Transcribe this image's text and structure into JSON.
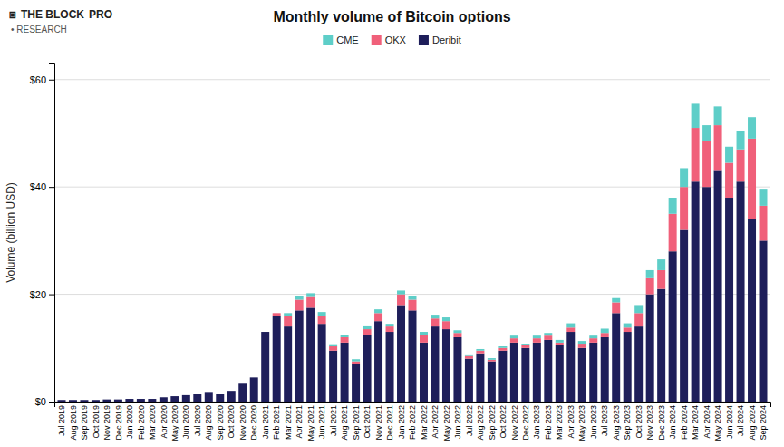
{
  "chart_data": {
    "type": "bar",
    "title": "Monthly volume of Bitcoin options",
    "y_label": "Volume (billion USD)",
    "annotations": [
      "⧈",
      "THE BLOCK",
      "PRO",
      "• RESEARCH"
    ],
    "stacked": true,
    "grid": true,
    "legend": "top",
    "ylim": [
      0,
      63
    ],
    "yticks": [
      {
        "value": 0,
        "label": "$0"
      },
      {
        "value": 20,
        "label": "$20"
      },
      {
        "value": 40,
        "label": "$40"
      },
      {
        "value": 60,
        "label": "$60"
      }
    ],
    "categories": [
      "Jul\n2019",
      "Aug\n2019",
      "Sep\n2019",
      "Oct\n2019",
      "Nov\n2019",
      "Dec\n2019",
      "Jan\n2020",
      "Feb\n2020",
      "Mar\n2020",
      "Apr\n2020",
      "May\n2020",
      "Jun\n2020",
      "Jul\n2020",
      "Aug\n2020",
      "Sep\n2020",
      "Oct\n2020",
      "Nov\n2020",
      "Dec\n2020",
      "Jan\n2021",
      "Feb\n2021",
      "Mar\n2021",
      "Apr\n2021",
      "May\n2021",
      "Jun\n2021",
      "Jul\n2021",
      "Aug\n2021",
      "Sep\n2021",
      "Oct\n2021",
      "Nov\n2021",
      "Dec\n2021",
      "Jan\n2022",
      "Feb\n2022",
      "Mar\n2022",
      "Apr\n2022",
      "May\n2022",
      "Jun\n2022",
      "Jul\n2022",
      "Aug\n2022",
      "Sep\n2022",
      "Oct\n2022",
      "Nov\n2022",
      "Dec\n2022",
      "Jan\n2023",
      "Feb\n2023",
      "Mar\n2023",
      "Apr\n2023",
      "May\n2023",
      "Jun\n2023",
      "Jul\n2023",
      "Aug\n2023",
      "Sep\n2023",
      "Oct\n2023",
      "Nov\n2023",
      "Dec\n2023",
      "Jan\n2024",
      "Feb\n2024",
      "Mar\n2024",
      "Apr\n2024",
      "May\n2024",
      "Jun\n2024",
      "Jul\n2024",
      "Aug\n2024",
      "Sep\n2024"
    ],
    "series": [
      {
        "name": "Deribit",
        "color": "#1e1e5a",
        "values": [
          0.3,
          0.3,
          0.3,
          0.3,
          0.4,
          0.4,
          0.5,
          0.5,
          0.5,
          0.8,
          1.0,
          1.2,
          1.5,
          1.8,
          1.5,
          2.0,
          3.5,
          4.5,
          13.0,
          16.0,
          14.0,
          17.0,
          17.5,
          14.5,
          9.5,
          11.0,
          7.0,
          12.5,
          15.0,
          13.0,
          18.0,
          17.0,
          11.0,
          14.0,
          13.5,
          12.0,
          8.0,
          9.0,
          7.5,
          9.5,
          11.0,
          10.0,
          11.0,
          11.5,
          10.5,
          13.0,
          10.0,
          11.0,
          12.0,
          16.5,
          13.0,
          14.0,
          20.0,
          21.0,
          28.0,
          32.0,
          41.0,
          40.0,
          43.0,
          38.0,
          41.0,
          34.0,
          30.0
        ]
      },
      {
        "name": "OKX",
        "color": "#f0607a",
        "values": [
          0.0,
          0.0,
          0.0,
          0.0,
          0.0,
          0.0,
          0.0,
          0.0,
          0.0,
          0.0,
          0.0,
          0.0,
          0.0,
          0.0,
          0.0,
          0.0,
          0.0,
          0.0,
          0.0,
          0.5,
          2.0,
          2.0,
          2.0,
          1.5,
          0.8,
          1.0,
          0.5,
          1.0,
          1.5,
          1.0,
          2.0,
          2.0,
          1.5,
          1.5,
          1.5,
          0.8,
          0.5,
          0.5,
          0.3,
          0.5,
          0.8,
          0.5,
          0.8,
          0.8,
          0.5,
          0.8,
          0.8,
          0.8,
          0.8,
          2.0,
          0.8,
          2.5,
          3.0,
          3.5,
          7.0,
          8.0,
          10.0,
          8.5,
          8.5,
          6.5,
          6.0,
          15.0,
          6.5
        ]
      },
      {
        "name": "CME",
        "color": "#5ecec8",
        "values": [
          0.0,
          0.0,
          0.0,
          0.0,
          0.0,
          0.0,
          0.0,
          0.0,
          0.0,
          0.0,
          0.0,
          0.0,
          0.0,
          0.0,
          0.0,
          0.0,
          0.0,
          0.0,
          0.0,
          0.0,
          0.5,
          0.7,
          0.7,
          0.7,
          0.4,
          0.4,
          0.4,
          0.7,
          0.7,
          0.5,
          0.7,
          0.7,
          0.5,
          0.7,
          0.7,
          0.5,
          0.3,
          0.3,
          0.3,
          0.3,
          0.5,
          0.3,
          0.5,
          0.5,
          0.5,
          0.8,
          0.5,
          0.5,
          0.8,
          0.8,
          0.8,
          1.5,
          1.5,
          2.0,
          3.0,
          3.5,
          4.5,
          3.0,
          3.5,
          3.0,
          3.5,
          4.0,
          3.0
        ]
      }
    ]
  }
}
